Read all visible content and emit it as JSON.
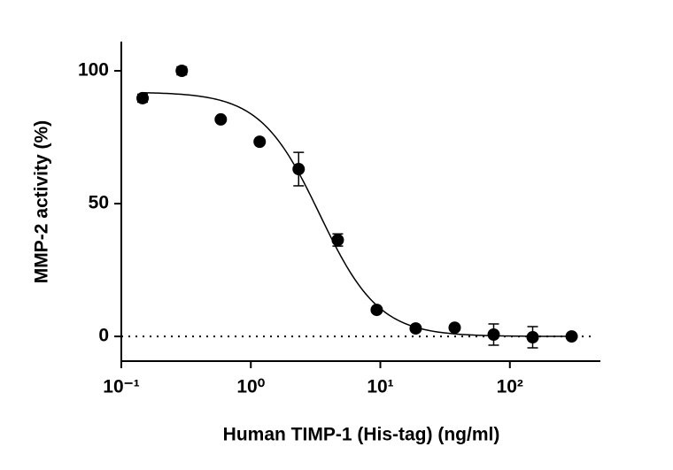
{
  "chart_data": {
    "type": "scatter",
    "x_label": "Human TIMP-1 (His-tag) (ng/ml)",
    "y_label": "MMP-2 activity (%)",
    "x_scale": "log",
    "series": [
      {
        "color": "#000000",
        "x": [
          0.146,
          0.293,
          0.586,
          1.17,
          2.34,
          4.69,
          9.38,
          18.75,
          37.5,
          75,
          150,
          300
        ],
        "values": [
          89.7,
          100,
          81.7,
          73.3,
          63,
          36.3,
          10,
          3,
          3.3,
          0.7,
          -0.3,
          0
        ],
        "errors": [
          1.5,
          1.5,
          0,
          0,
          6.3,
          2.3,
          0,
          0,
          0,
          4,
          4,
          0
        ]
      }
    ],
    "fit": {
      "top": 92,
      "bottom": 0,
      "ic50": 3.4,
      "hill": 1.9
    },
    "reference_line": 0,
    "xlim": [
      0.1,
      500
    ],
    "ylim": [
      -9.3,
      111
    ],
    "xticks": [
      {
        "value": 0.1,
        "label": "10⁻¹"
      },
      {
        "value": 1,
        "label": "10⁰"
      },
      {
        "value": 10,
        "label": "10¹"
      },
      {
        "value": 100,
        "label": "10²"
      }
    ],
    "yticks": [
      0,
      50,
      100
    ]
  }
}
